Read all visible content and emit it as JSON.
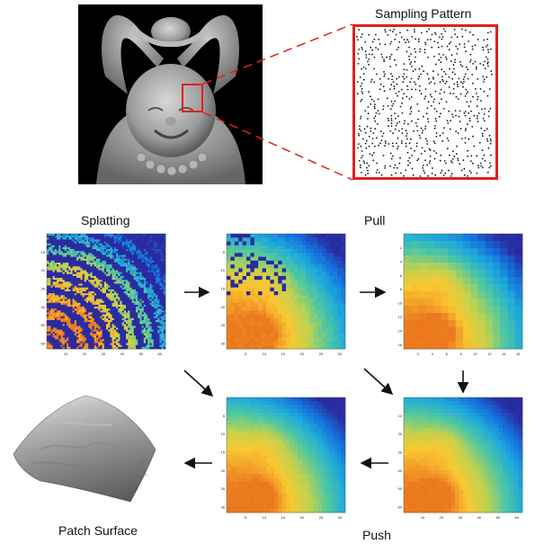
{
  "labels": {
    "sampling_pattern": "Sampling Pattern",
    "splatting": "Splatting",
    "pull": "Pull",
    "push": "Push",
    "patch_surface": "Patch Surface"
  },
  "colors": {
    "highlight": "#e02020",
    "arrow": "#111111",
    "dark_blue": "#2a2aa0",
    "statue": "#9a9a9a"
  },
  "panels": {
    "splat": {
      "x_ticks": [
        "10",
        "20",
        "30",
        "40",
        "50",
        "60"
      ],
      "y_ticks": [
        "10",
        "20",
        "30",
        "40",
        "50",
        "60"
      ]
    },
    "pull1": {
      "x_ticks": [
        "5",
        "10",
        "15",
        "20",
        "25",
        "30"
      ],
      "y_ticks": [
        "5",
        "10",
        "15",
        "20",
        "25",
        "30"
      ]
    },
    "pull2": {
      "x_ticks": [
        "2",
        "4",
        "6",
        "8",
        "10",
        "12",
        "14",
        "16"
      ],
      "y_ticks": [
        "2",
        "4",
        "6",
        "8",
        "10",
        "12",
        "14",
        "16"
      ]
    },
    "push1": {
      "x_ticks": [
        "5",
        "10",
        "15",
        "20",
        "25",
        "30"
      ],
      "y_ticks": [
        "5",
        "10",
        "15",
        "20",
        "25",
        "30"
      ]
    },
    "push2": {
      "x_ticks": [
        "10",
        "20",
        "30",
        "40",
        "50",
        "60"
      ],
      "y_ticks": [
        "10",
        "20",
        "30",
        "40",
        "50",
        "60"
      ]
    }
  }
}
